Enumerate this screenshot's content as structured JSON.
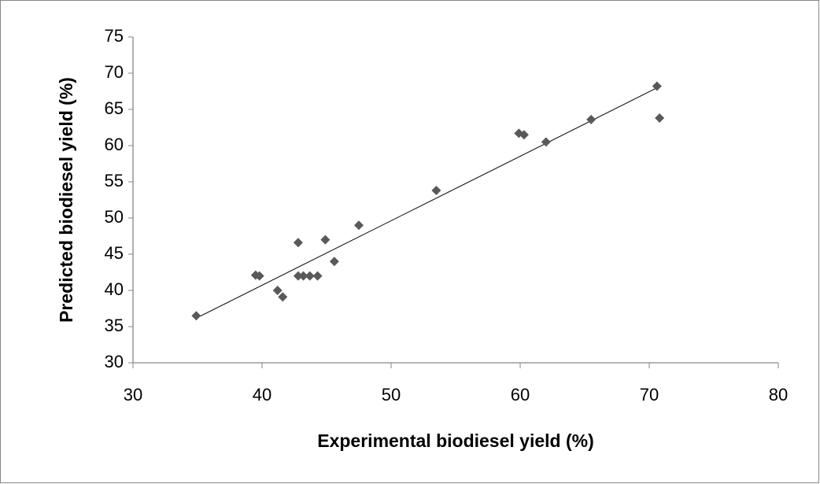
{
  "chart_data": {
    "type": "scatter",
    "x_label": "Experimental biodiesel yield (%)",
    "y_label": "Predicted biodiesel yield (%)",
    "x": [
      34.9,
      39.5,
      39.8,
      41.2,
      41.6,
      42.8,
      42.8,
      43.2,
      43.7,
      44.3,
      44.9,
      45.6,
      47.5,
      53.5,
      59.9,
      60.3,
      62.0,
      65.5,
      70.6,
      70.8
    ],
    "values": [
      36.5,
      42.1,
      42.0,
      40.0,
      39.1,
      46.6,
      42.0,
      42.0,
      42.0,
      42.0,
      47.0,
      44.0,
      49.0,
      53.8,
      61.7,
      61.5,
      60.5,
      63.6,
      68.2,
      63.8
    ],
    "color": "#595959",
    "trendline": true,
    "xlim": [
      30,
      80
    ],
    "xticks": [
      30,
      40,
      50,
      60,
      70,
      80
    ],
    "ylim": [
      30,
      75
    ],
    "yticks": [
      30,
      35,
      40,
      45,
      50,
      55,
      60,
      65,
      70,
      75
    ]
  }
}
